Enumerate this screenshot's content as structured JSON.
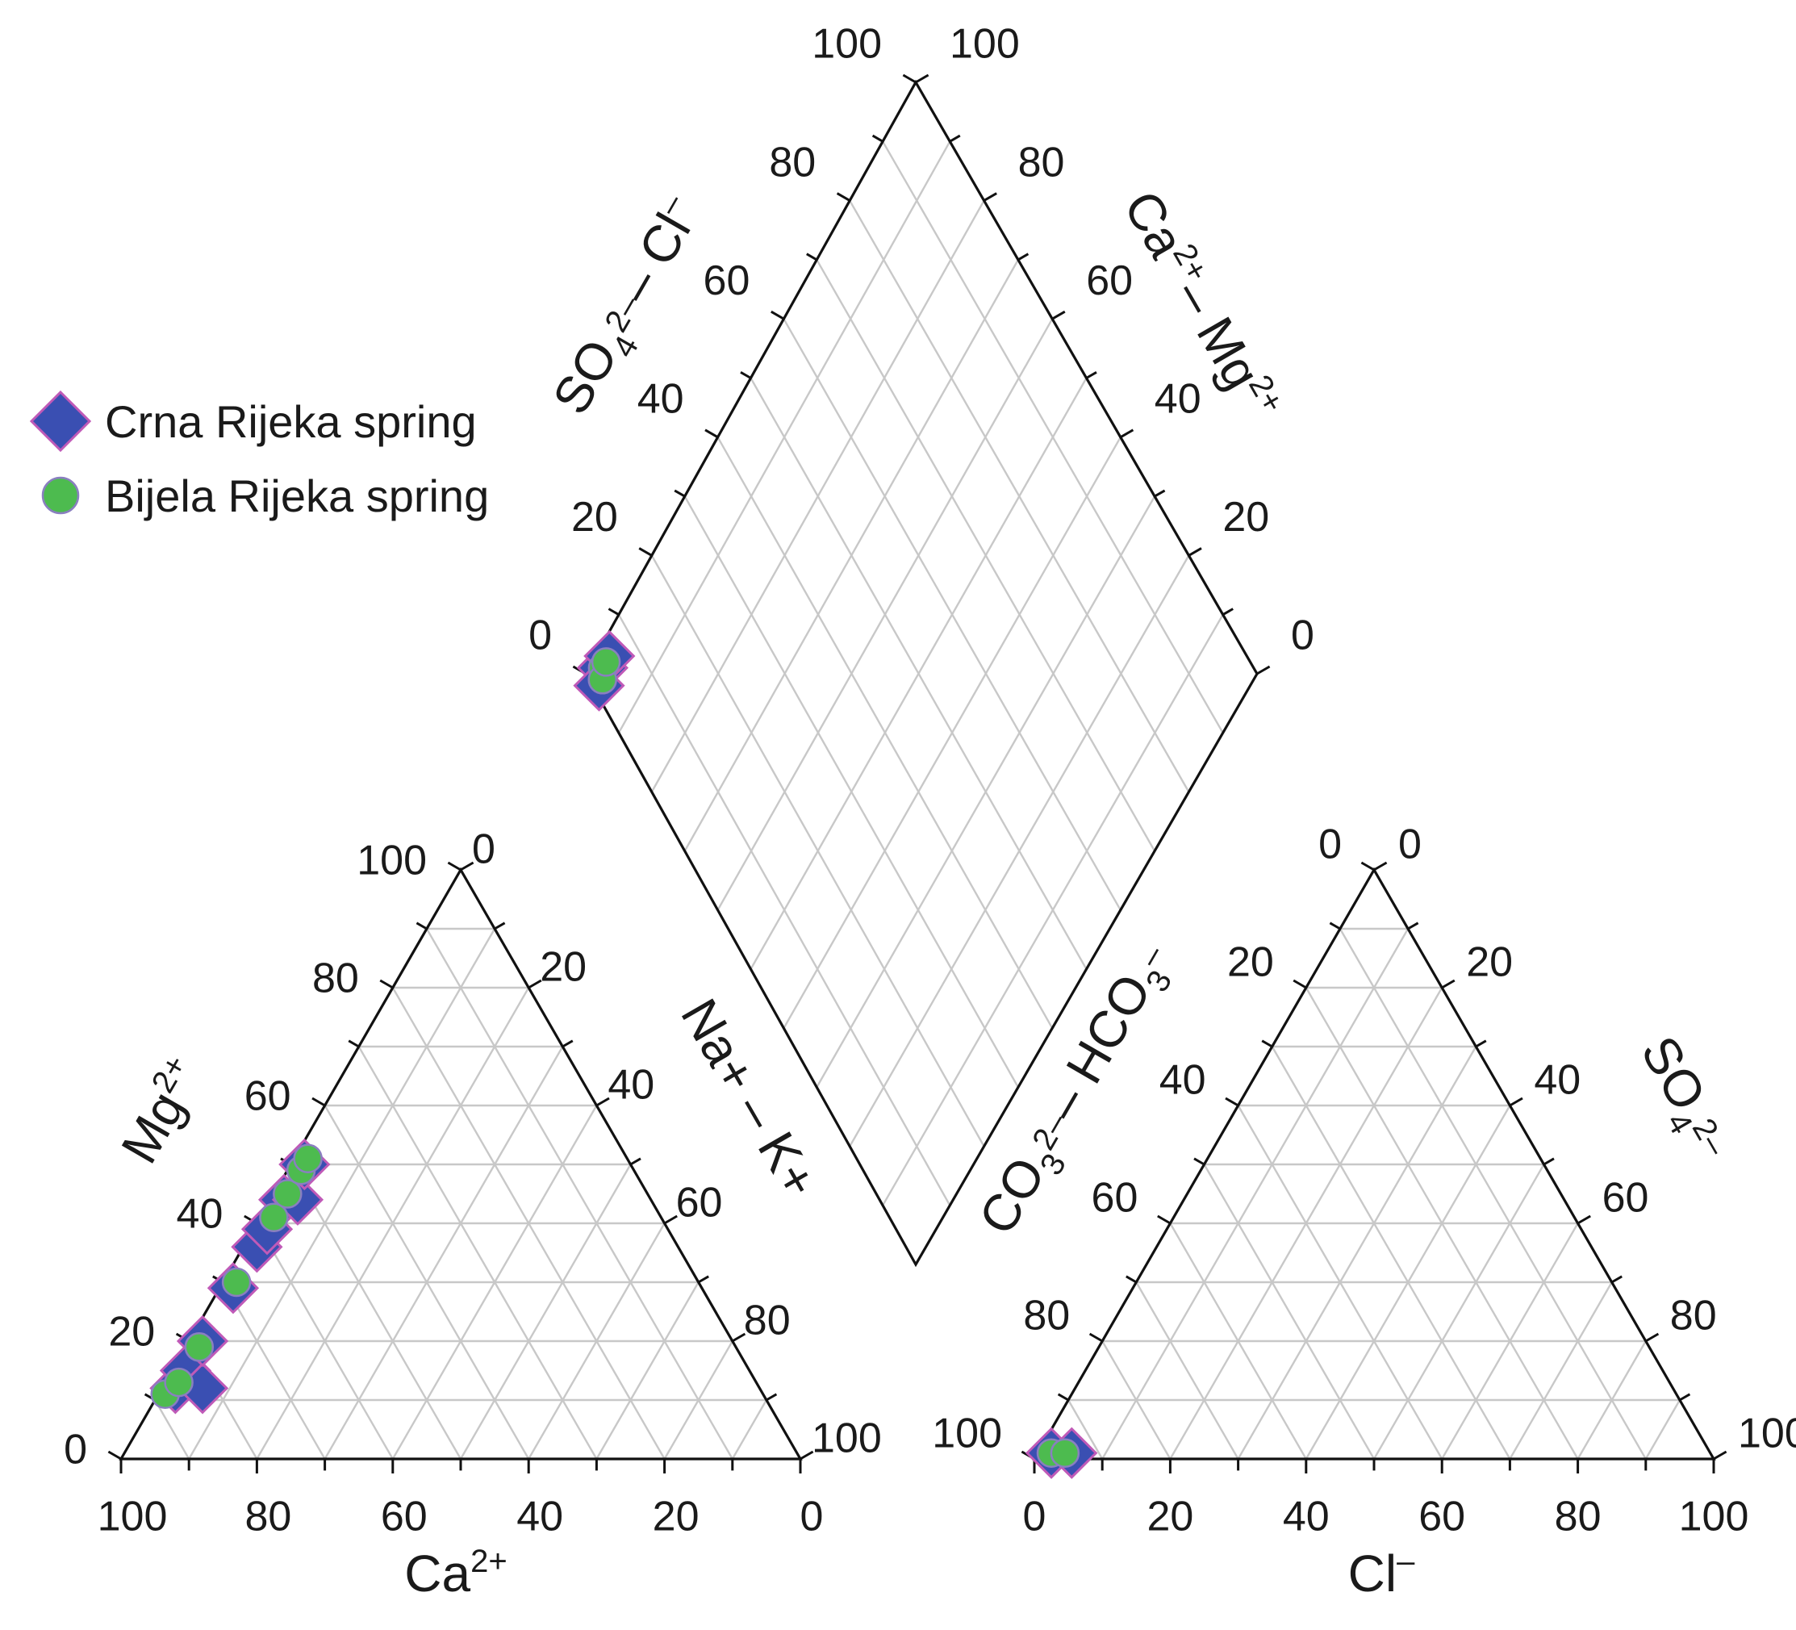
{
  "chart_data": {
    "type": "scatter",
    "subtype": "piper-diagram",
    "colors": {
      "crna_fill": "#3a4fb2",
      "crna_stroke": "#c05ab8",
      "bijela_fill": "#4dbb4f",
      "bijela_stroke": "#8a7fc0",
      "grid": "#c8c8c8",
      "frame": "#111111"
    },
    "legend": {
      "placement": "top-left",
      "items": [
        {
          "label": "Crna Rijeka spring",
          "marker": "diamond",
          "color": "#3a4fb2"
        },
        {
          "label": "Bijela Rijeka spring",
          "marker": "circle",
          "color": "#4dbb4f"
        }
      ]
    },
    "cation_triangle": {
      "axis_labels": {
        "mg": {
          "base": "Mg",
          "sup": "2+"
        },
        "na_k": {
          "base": "Na+ – K+",
          "sup": ""
        },
        "ca": {
          "base": "Ca",
          "sup": "2+"
        }
      },
      "tick_labels": {
        "left": [
          "0",
          "20",
          "40",
          "60",
          "80",
          "100"
        ],
        "right": [
          "0",
          "20",
          "40",
          "60",
          "80",
          "100"
        ],
        "bottom": [
          "100",
          "80",
          "60",
          "40",
          "20",
          "0"
        ]
      },
      "ranges": {
        "mg": [
          0,
          100
        ],
        "na_k": [
          0,
          100
        ],
        "ca": [
          0,
          100
        ]
      },
      "points": [
        {
          "series": "Crna Rijeka spring",
          "mg": 12,
          "na_k": 2,
          "ca": 86
        },
        {
          "series": "Crna Rijeka spring",
          "mg": 15,
          "na_k": 2,
          "ca": 83
        },
        {
          "series": "Crna Rijeka spring",
          "mg": 12,
          "na_k": 6,
          "ca": 82
        },
        {
          "series": "Crna Rijeka spring",
          "mg": 20,
          "na_k": 2,
          "ca": 78
        },
        {
          "series": "Crna Rijeka spring",
          "mg": 29,
          "na_k": 2,
          "ca": 69
        },
        {
          "series": "Crna Rijeka spring",
          "mg": 36,
          "na_k": 2,
          "ca": 62
        },
        {
          "series": "Crna Rijeka spring",
          "mg": 39,
          "na_k": 2,
          "ca": 59
        },
        {
          "series": "Crna Rijeka spring",
          "mg": 44,
          "na_k": 2,
          "ca": 54
        },
        {
          "series": "Crna Rijeka spring",
          "mg": 44,
          "na_k": 4,
          "ca": 52
        },
        {
          "series": "Crna Rijeka spring",
          "mg": 50,
          "na_k": 2,
          "ca": 48
        },
        {
          "series": "Bijela Rijeka spring",
          "mg": 11,
          "na_k": 1,
          "ca": 88
        },
        {
          "series": "Bijela Rijeka spring",
          "mg": 13,
          "na_k": 2,
          "ca": 85
        },
        {
          "series": "Bijela Rijeka spring",
          "mg": 19,
          "na_k": 2,
          "ca": 79
        },
        {
          "series": "Bijela Rijeka spring",
          "mg": 30,
          "na_k": 2,
          "ca": 68
        },
        {
          "series": "Bijela Rijeka spring",
          "mg": 41,
          "na_k": 2,
          "ca": 57
        },
        {
          "series": "Bijela Rijeka spring",
          "mg": 45,
          "na_k": 2,
          "ca": 53
        },
        {
          "series": "Bijela Rijeka spring",
          "mg": 49,
          "na_k": 2,
          "ca": 49
        },
        {
          "series": "Bijela Rijeka spring",
          "mg": 51,
          "na_k": 2,
          "ca": 47
        }
      ]
    },
    "anion_triangle": {
      "axis_labels": {
        "co3_hco3": {
          "base": "CO",
          "sub": "3",
          "sup": "2–",
          "rest": "– HCO",
          "sub2": "3",
          "sup2": "–"
        },
        "so4": {
          "base": "SO",
          "sub": "4",
          "sup": "2–"
        },
        "cl": {
          "base": "Cl",
          "sup": "–"
        }
      },
      "tick_labels": {
        "left": [
          "100",
          "80",
          "60",
          "40",
          "20",
          "0"
        ],
        "right": [
          "0",
          "20",
          "40",
          "60",
          "80",
          "100"
        ],
        "bottom": [
          "0",
          "20",
          "40",
          "60",
          "80",
          "100"
        ]
      },
      "ranges": {
        "co3_hco3": [
          0,
          100
        ],
        "so4": [
          0,
          100
        ],
        "cl": [
          0,
          100
        ]
      },
      "points": [
        {
          "series": "Crna Rijeka spring",
          "co3_hco3": 97,
          "so4": 1,
          "cl": 2
        },
        {
          "series": "Crna Rijeka spring",
          "co3_hco3": 94,
          "so4": 1,
          "cl": 5
        },
        {
          "series": "Bijela Rijeka spring",
          "co3_hco3": 97,
          "so4": 1,
          "cl": 2
        },
        {
          "series": "Bijela Rijeka spring",
          "co3_hco3": 95,
          "so4": 1,
          "cl": 4
        }
      ]
    },
    "diamond": {
      "axis_labels": {
        "so4_cl": {
          "base": "SO",
          "sub": "4",
          "sup": "2–",
          "rest": "– Cl",
          "sup2": "–"
        },
        "ca_mg": {
          "base": "Ca",
          "sup": "2+",
          "rest": "– Mg",
          "sup2": "2+"
        }
      },
      "tick_labels": {
        "left": [
          "0",
          "20",
          "40",
          "60",
          "80",
          "100"
        ],
        "right": [
          "0",
          "20",
          "40",
          "60",
          "80",
          "100"
        ]
      },
      "ranges": {
        "so4_cl": [
          0,
          100
        ],
        "ca_mg": [
          0,
          100
        ]
      },
      "points": [
        {
          "series": "Crna Rijeka spring",
          "so4_cl": 3,
          "ca_mg": 98
        },
        {
          "series": "Crna Rijeka spring",
          "so4_cl": 1,
          "ca_mg": 97
        },
        {
          "series": "Crna Rijeka spring",
          "so4_cl": 5,
          "ca_mg": 98
        },
        {
          "series": "Bijela Rijeka spring",
          "so4_cl": 3,
          "ca_mg": 98
        },
        {
          "series": "Bijela Rijeka spring",
          "so4_cl": 2,
          "ca_mg": 97
        },
        {
          "series": "Bijela Rijeka spring",
          "so4_cl": 4,
          "ca_mg": 98
        }
      ]
    }
  }
}
